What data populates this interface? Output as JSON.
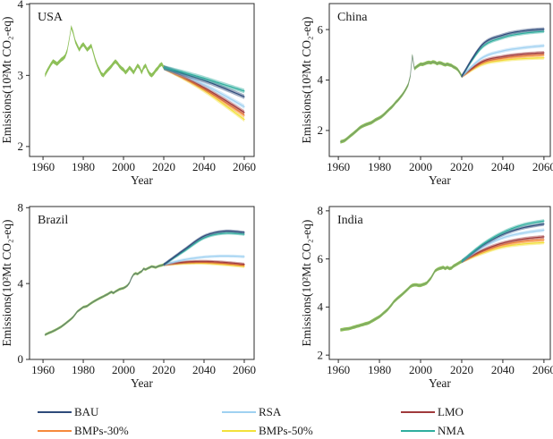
{
  "figure": {
    "background": "#ffffff"
  },
  "legend": {
    "items": [
      {
        "id": "bau",
        "label": "BAU",
        "color": "#2e4a7a"
      },
      {
        "id": "bmps30",
        "label": "BMPs-30%",
        "color": "#f6893b"
      },
      {
        "id": "rsa",
        "label": "RSA",
        "color": "#9fd1f1"
      },
      {
        "id": "bmps50",
        "label": "BMPs-50%",
        "color": "#f2e13a"
      },
      {
        "id": "lmo",
        "label": "LMO",
        "color": "#a03a3c"
      },
      {
        "id": "nma",
        "label": "NMA",
        "color": "#2fae9e"
      }
    ]
  },
  "chart_data": [
    {
      "type": "line",
      "title": "USA",
      "xlabel": "Year",
      "ylabel": "Emissions(10²Mt CO₂-eq)",
      "xlim": [
        1953.3,
        2064.9
      ],
      "ylim": [
        1.86,
        4.01
      ],
      "xticks": [
        1960,
        1980,
        2000,
        2020,
        2040,
        2060
      ],
      "yticks": [
        2,
        3,
        4
      ],
      "hist_band_halfwidth": 0.028,
      "hist_line_opacity": 0.0,
      "scen_band_halfwidth": 0.032,
      "historical": {
        "color": "#88bd50",
        "start_year": 1961,
        "values": [
          3.0,
          3.06,
          3.11,
          3.16,
          3.2,
          3.18,
          3.16,
          3.19,
          3.22,
          3.24,
          3.27,
          3.35,
          3.5,
          3.68,
          3.6,
          3.48,
          3.42,
          3.36,
          3.41,
          3.44,
          3.4,
          3.36,
          3.39,
          3.42,
          3.32,
          3.22,
          3.14,
          3.08,
          3.02,
          3.0,
          3.04,
          3.07,
          3.1,
          3.13,
          3.17,
          3.2,
          3.17,
          3.13,
          3.1,
          3.08,
          3.04,
          3.07,
          3.11,
          3.08,
          3.04,
          3.09,
          3.14,
          3.11,
          3.04,
          3.11,
          3.14,
          3.07,
          3.02,
          3.0,
          3.03,
          3.07,
          3.1,
          3.14,
          3.16,
          3.11
        ]
      },
      "scenario_years": [
        2020,
        2030,
        2040,
        2050,
        2060
      ],
      "scenarios": [
        {
          "id": "bmps50",
          "name": "BMPs-50%",
          "values": [
            3.11,
            2.96,
            2.79,
            2.59,
            2.38
          ]
        },
        {
          "id": "bmps30",
          "name": "BMPs-30%",
          "values": [
            3.11,
            2.97,
            2.81,
            2.63,
            2.44
          ]
        },
        {
          "id": "lmo",
          "name": "LMO",
          "values": [
            3.11,
            2.98,
            2.83,
            2.66,
            2.48
          ]
        },
        {
          "id": "rsa",
          "name": "RSA",
          "values": [
            3.11,
            3.0,
            2.87,
            2.72,
            2.56
          ]
        },
        {
          "id": "bau",
          "name": "BAU",
          "values": [
            3.11,
            3.02,
            2.93,
            2.82,
            2.7
          ]
        },
        {
          "id": "nma",
          "name": "NMA",
          "values": [
            3.11,
            3.04,
            2.96,
            2.87,
            2.78
          ]
        }
      ]
    },
    {
      "type": "line",
      "title": "China",
      "xlabel": "Year",
      "ylabel": "Emissions(10²Mt CO₂-eq)",
      "xlim": [
        1955.6,
        2063.1
      ],
      "ylim": [
        0.97,
        7.03
      ],
      "xticks": [
        1960,
        1980,
        2000,
        2020,
        2040,
        2060
      ],
      "yticks": [
        2,
        4,
        6
      ],
      "hist_band_halfwidth": 0.07,
      "hist_line_opacity": 0.5,
      "scen_band_halfwidth": 0.07,
      "historical": {
        "color": "#88bd50",
        "start_year": 1961,
        "values": [
          1.55,
          1.57,
          1.6,
          1.66,
          1.73,
          1.8,
          1.86,
          1.93,
          2.0,
          2.08,
          2.14,
          2.18,
          2.22,
          2.25,
          2.28,
          2.31,
          2.36,
          2.42,
          2.46,
          2.5,
          2.55,
          2.62,
          2.7,
          2.78,
          2.86,
          2.93,
          3.02,
          3.12,
          3.2,
          3.3,
          3.4,
          3.52,
          3.66,
          3.82,
          4.15,
          4.98,
          4.45,
          4.52,
          4.58,
          4.63,
          4.62,
          4.65,
          4.68,
          4.7,
          4.68,
          4.72,
          4.7,
          4.65,
          4.68,
          4.67,
          4.63,
          4.6,
          4.63,
          4.6,
          4.58,
          4.52,
          4.48,
          4.42,
          4.3,
          4.15
        ]
      },
      "scenario_years": [
        2020,
        2030,
        2040,
        2050,
        2060
      ],
      "scenarios": [
        {
          "id": "bmps50",
          "name": "BMPs-50%",
          "values": [
            4.15,
            4.62,
            4.78,
            4.85,
            4.88
          ]
        },
        {
          "id": "bmps30",
          "name": "BMPs-30%",
          "values": [
            4.15,
            4.68,
            4.86,
            4.95,
            5.0
          ]
        },
        {
          "id": "lmo",
          "name": "LMO",
          "values": [
            4.15,
            4.73,
            4.93,
            5.03,
            5.08
          ]
        },
        {
          "id": "rsa",
          "name": "RSA",
          "values": [
            4.15,
            4.88,
            5.15,
            5.28,
            5.36
          ]
        },
        {
          "id": "nma",
          "name": "NMA",
          "values": [
            4.15,
            5.3,
            5.68,
            5.85,
            5.93
          ]
        },
        {
          "id": "bau",
          "name": "BAU",
          "values": [
            4.15,
            5.4,
            5.78,
            5.95,
            6.02
          ]
        }
      ]
    },
    {
      "type": "line",
      "title": "Brazil",
      "xlabel": "Year",
      "ylabel": "Emissions(10²Mt CO₂-eq)",
      "xlim": [
        1953.3,
        2064.9
      ],
      "ylim": [
        0,
        8.06
      ],
      "xticks": [
        1960,
        1980,
        2000,
        2020,
        2040,
        2060
      ],
      "yticks": [
        0,
        4,
        8
      ],
      "hist_band_halfwidth": 0.07,
      "hist_line_opacity": 0.9,
      "scen_band_halfwidth": 0.08,
      "historical": {
        "color": "#88bd50",
        "start_year": 1961,
        "values": [
          1.3,
          1.35,
          1.4,
          1.44,
          1.49,
          1.54,
          1.6,
          1.66,
          1.72,
          1.8,
          1.88,
          1.97,
          2.05,
          2.14,
          2.24,
          2.38,
          2.52,
          2.6,
          2.68,
          2.76,
          2.78,
          2.82,
          2.9,
          2.97,
          3.04,
          3.1,
          3.16,
          3.22,
          3.27,
          3.32,
          3.38,
          3.43,
          3.5,
          3.56,
          3.5,
          3.58,
          3.64,
          3.7,
          3.73,
          3.76,
          3.82,
          3.9,
          4.05,
          4.3,
          4.48,
          4.54,
          4.5,
          4.58,
          4.64,
          4.78,
          4.74,
          4.8,
          4.85,
          4.9,
          4.88,
          4.85,
          4.9,
          4.94,
          4.96,
          5.0
        ]
      },
      "scenario_years": [
        2020,
        2030,
        2040,
        2050,
        2060
      ],
      "scenarios": [
        {
          "id": "bmps50",
          "name": "BMPs-50%",
          "values": [
            5.0,
            5.06,
            5.07,
            5.0,
            4.9
          ]
        },
        {
          "id": "bmps30",
          "name": "BMPs-30%",
          "values": [
            5.0,
            5.1,
            5.12,
            5.06,
            4.96
          ]
        },
        {
          "id": "lmo",
          "name": "LMO",
          "values": [
            5.0,
            5.13,
            5.17,
            5.12,
            5.02
          ]
        },
        {
          "id": "rsa",
          "name": "RSA",
          "values": [
            5.0,
            5.25,
            5.4,
            5.45,
            5.42
          ]
        },
        {
          "id": "nma",
          "name": "NMA",
          "values": [
            5.0,
            5.7,
            6.4,
            6.65,
            6.6
          ]
        },
        {
          "id": "bau",
          "name": "BAU",
          "values": [
            5.0,
            5.78,
            6.5,
            6.76,
            6.7
          ]
        }
      ]
    },
    {
      "type": "line",
      "title": "India",
      "xlabel": "Year",
      "ylabel": "Emissions(10²Mt CO₂-eq)",
      "xlim": [
        1955.6,
        2063.1
      ],
      "ylim": [
        1.82,
        8.18
      ],
      "xticks": [
        1960,
        1980,
        2000,
        2020,
        2040,
        2060
      ],
      "yticks": [
        2,
        4,
        6,
        8
      ],
      "hist_band_halfwidth": 0.07,
      "hist_line_opacity": 0.4,
      "scen_band_halfwidth": 0.075,
      "historical": {
        "color": "#88bd50",
        "start_year": 1961,
        "values": [
          3.05,
          3.06,
          3.08,
          3.09,
          3.1,
          3.12,
          3.15,
          3.17,
          3.2,
          3.22,
          3.25,
          3.27,
          3.3,
          3.32,
          3.35,
          3.4,
          3.45,
          3.5,
          3.55,
          3.6,
          3.67,
          3.75,
          3.82,
          3.9,
          4.0,
          4.1,
          4.22,
          4.3,
          4.38,
          4.45,
          4.52,
          4.6,
          4.68,
          4.76,
          4.85,
          4.9,
          4.92,
          4.92,
          4.9,
          4.9,
          4.93,
          4.96,
          5.0,
          5.1,
          5.2,
          5.35,
          5.5,
          5.56,
          5.6,
          5.62,
          5.65,
          5.6,
          5.65,
          5.6,
          5.62,
          5.7,
          5.75,
          5.8,
          5.85,
          5.9
        ]
      },
      "scenario_years": [
        2020,
        2030,
        2040,
        2050,
        2060
      ],
      "scenarios": [
        {
          "id": "bmps50",
          "name": "BMPs-50%",
          "values": [
            5.9,
            6.24,
            6.5,
            6.62,
            6.68
          ]
        },
        {
          "id": "bmps30",
          "name": "BMPs-30%",
          "values": [
            5.9,
            6.3,
            6.58,
            6.73,
            6.8
          ]
        },
        {
          "id": "lmo",
          "name": "LMO",
          "values": [
            5.9,
            6.35,
            6.66,
            6.83,
            6.92
          ]
        },
        {
          "id": "rsa",
          "name": "RSA",
          "values": [
            5.9,
            6.48,
            6.88,
            7.08,
            7.2
          ]
        },
        {
          "id": "bau",
          "name": "BAU",
          "values": [
            5.9,
            6.55,
            7.02,
            7.3,
            7.45
          ]
        },
        {
          "id": "nma",
          "name": "NMA",
          "values": [
            5.9,
            6.6,
            7.1,
            7.42,
            7.58
          ]
        }
      ]
    }
  ]
}
